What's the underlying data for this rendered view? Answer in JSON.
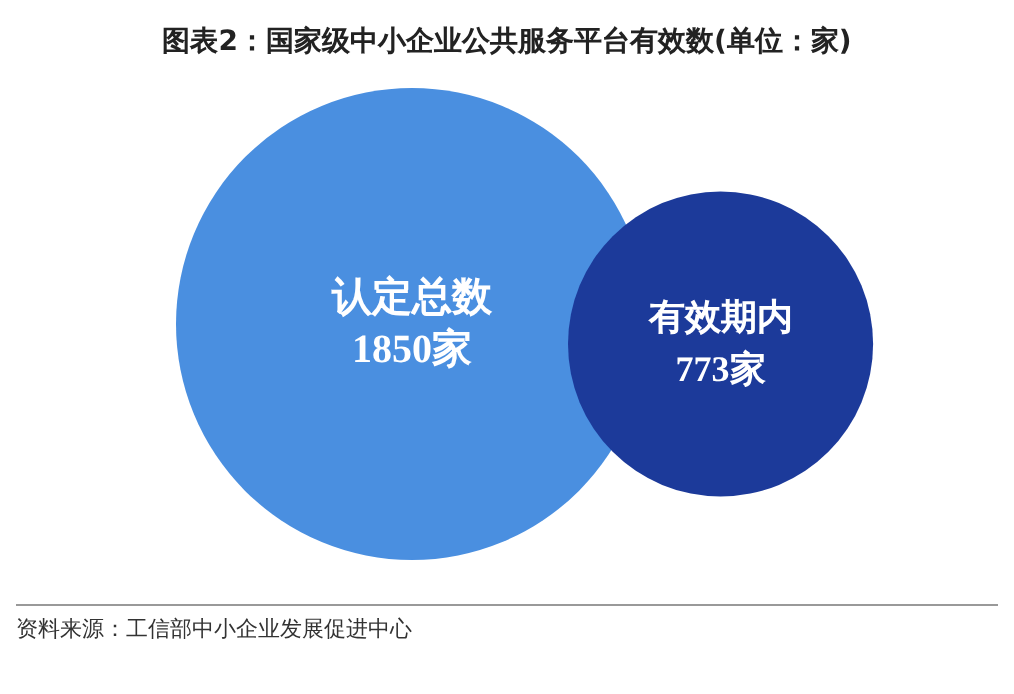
{
  "chart_data": {
    "type": "other",
    "title": "图表2：国家级中小企业公共服务平台有效数(单位：家)",
    "categories": [
      "认定总数",
      "有效期内"
    ],
    "values": [
      1850,
      773
    ],
    "colors": [
      "#4a8fe0",
      "#1c3a9a"
    ],
    "value_labels": [
      "1850家",
      "773家"
    ],
    "annotations": [
      "资料来源：工信部中小企业发展促进中心"
    ]
  }
}
